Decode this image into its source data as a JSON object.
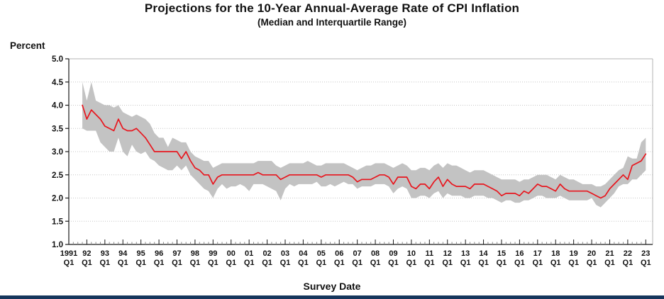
{
  "chart_data": {
    "type": "line",
    "title": "Projections for the 10-Year Annual-Average Rate of CPI Inflation",
    "subtitle": "(Median and Interquartile Range)",
    "xlabel": "Survey Date",
    "ylabel": "Percent",
    "ylim": [
      1.0,
      5.0
    ],
    "grid": "horizontal-dotted",
    "legend": "none",
    "x_start": "1991 Q4",
    "x_end": "2023 Q1",
    "frequency": "quarterly",
    "series": [
      {
        "name": "Median",
        "values": [
          4.0,
          3.7,
          3.9,
          3.8,
          3.7,
          3.55,
          3.5,
          3.45,
          3.7,
          3.5,
          3.45,
          3.45,
          3.5,
          3.4,
          3.3,
          3.15,
          3.0,
          3.0,
          3.0,
          3.0,
          3.0,
          3.0,
          2.85,
          3.0,
          2.8,
          2.65,
          2.6,
          2.5,
          2.5,
          2.3,
          2.45,
          2.5,
          2.5,
          2.5,
          2.5,
          2.5,
          2.5,
          2.5,
          2.5,
          2.55,
          2.5,
          2.5,
          2.5,
          2.5,
          2.4,
          2.45,
          2.5,
          2.5,
          2.5,
          2.5,
          2.5,
          2.5,
          2.5,
          2.45,
          2.5,
          2.5,
          2.5,
          2.5,
          2.5,
          2.5,
          2.45,
          2.35,
          2.4,
          2.4,
          2.4,
          2.45,
          2.5,
          2.5,
          2.45,
          2.3,
          2.45,
          2.45,
          2.45,
          2.25,
          2.2,
          2.3,
          2.3,
          2.2,
          2.35,
          2.45,
          2.25,
          2.4,
          2.3,
          2.25,
          2.25,
          2.25,
          2.2,
          2.3,
          2.3,
          2.3,
          2.25,
          2.2,
          2.15,
          2.05,
          2.1,
          2.1,
          2.1,
          2.05,
          2.15,
          2.1,
          2.2,
          2.3,
          2.25,
          2.25,
          2.2,
          2.15,
          2.3,
          2.2,
          2.15,
          2.15,
          2.15,
          2.15,
          2.15,
          2.1,
          2.05,
          2.0,
          2.05,
          2.2,
          2.3,
          2.4,
          2.5,
          2.4,
          2.7,
          2.75,
          2.8,
          2.95
        ]
      },
      {
        "name": "Lower quartile (25th percentile)",
        "values": [
          3.5,
          3.45,
          3.45,
          3.45,
          3.2,
          3.1,
          3.0,
          3.0,
          3.3,
          3.0,
          2.9,
          3.15,
          3.0,
          2.95,
          3.0,
          2.85,
          2.8,
          2.7,
          2.65,
          2.6,
          2.6,
          2.7,
          2.6,
          2.7,
          2.5,
          2.4,
          2.3,
          2.2,
          2.15,
          2.0,
          2.2,
          2.3,
          2.2,
          2.25,
          2.25,
          2.3,
          2.25,
          2.15,
          2.3,
          2.3,
          2.3,
          2.25,
          2.2,
          2.15,
          1.95,
          2.2,
          2.3,
          2.25,
          2.3,
          2.3,
          2.3,
          2.3,
          2.35,
          2.25,
          2.25,
          2.3,
          2.25,
          2.3,
          2.35,
          2.3,
          2.3,
          2.2,
          2.25,
          2.25,
          2.25,
          2.3,
          2.3,
          2.3,
          2.25,
          2.1,
          2.2,
          2.25,
          2.2,
          2.0,
          2.0,
          2.05,
          2.05,
          2.0,
          2.1,
          2.15,
          2.0,
          2.1,
          2.05,
          2.05,
          2.05,
          2.0,
          2.0,
          2.05,
          2.05,
          2.05,
          2.0,
          2.0,
          1.95,
          1.9,
          1.95,
          1.95,
          1.9,
          1.9,
          1.95,
          1.95,
          2.0,
          2.05,
          2.05,
          2.0,
          2.0,
          2.0,
          2.05,
          2.0,
          1.95,
          1.95,
          1.95,
          1.95,
          1.95,
          2.0,
          1.85,
          1.8,
          1.9,
          2.0,
          2.1,
          2.25,
          2.3,
          2.3,
          2.4,
          2.4,
          2.5,
          2.6
        ]
      },
      {
        "name": "Upper quartile (75th percentile)",
        "values": [
          4.5,
          4.1,
          4.5,
          4.1,
          4.05,
          4.0,
          4.0,
          3.95,
          4.0,
          3.85,
          3.8,
          3.75,
          3.8,
          3.75,
          3.7,
          3.6,
          3.4,
          3.3,
          3.3,
          3.1,
          3.3,
          3.25,
          3.2,
          3.2,
          3.0,
          2.9,
          2.85,
          2.8,
          2.8,
          2.65,
          2.7,
          2.75,
          2.75,
          2.75,
          2.75,
          2.75,
          2.75,
          2.75,
          2.75,
          2.8,
          2.8,
          2.8,
          2.8,
          2.7,
          2.65,
          2.7,
          2.75,
          2.75,
          2.75,
          2.75,
          2.8,
          2.75,
          2.7,
          2.7,
          2.75,
          2.75,
          2.75,
          2.75,
          2.75,
          2.7,
          2.65,
          2.6,
          2.65,
          2.7,
          2.7,
          2.75,
          2.75,
          2.75,
          2.7,
          2.65,
          2.7,
          2.75,
          2.7,
          2.6,
          2.6,
          2.65,
          2.65,
          2.6,
          2.7,
          2.75,
          2.65,
          2.75,
          2.7,
          2.7,
          2.65,
          2.6,
          2.55,
          2.6,
          2.6,
          2.6,
          2.55,
          2.5,
          2.45,
          2.4,
          2.4,
          2.4,
          2.4,
          2.35,
          2.4,
          2.4,
          2.45,
          2.5,
          2.5,
          2.5,
          2.45,
          2.4,
          2.5,
          2.45,
          2.4,
          2.4,
          2.35,
          2.3,
          2.3,
          2.3,
          2.25,
          2.25,
          2.3,
          2.4,
          2.5,
          2.6,
          2.65,
          2.9,
          2.85,
          2.85,
          3.2,
          3.3
        ]
      }
    ]
  },
  "y_axis": {
    "label": "Percent",
    "tick_labels": [
      "5.0",
      "4.5",
      "4.0",
      "3.5",
      "3.0",
      "2.5",
      "2.0",
      "1.5",
      "1.0"
    ]
  },
  "x_axis": {
    "label": "Survey Date",
    "tick_years": [
      "1991",
      "92",
      "93",
      "94",
      "95",
      "96",
      "97",
      "98",
      "99",
      "00",
      "01",
      "02",
      "03",
      "04",
      "05",
      "06",
      "07",
      "08",
      "09",
      "10",
      "11",
      "12",
      "13",
      "14",
      "15",
      "16",
      "17",
      "18",
      "19",
      "20",
      "21",
      "22",
      "23"
    ],
    "tick_quarter": "Q1"
  },
  "colors": {
    "median_line": "#e8161e",
    "iqr_band": "#c3c3c3",
    "gridline": "#c6c6c6",
    "axis": "#1a1a1a",
    "frame_light": "#b3b3b3",
    "footer_bar": "#16365c"
  }
}
